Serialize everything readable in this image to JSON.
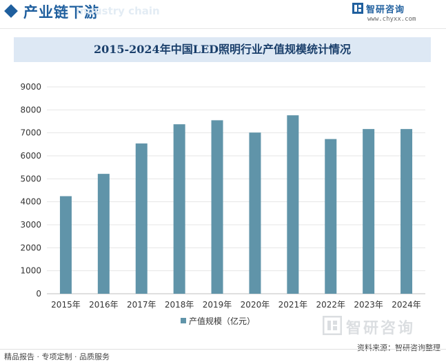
{
  "header": {
    "section_title": "产业链下游",
    "section_title_en": "Industry chain",
    "brand_name": "智研咨询",
    "brand_url": "www.chyxx.com",
    "accent_color": "#1f5f9e"
  },
  "chart_data": {
    "type": "bar",
    "title": "2015-2024年中国LED照明行业产值规模统计情况",
    "categories": [
      "2015年",
      "2016年",
      "2017年",
      "2018年",
      "2019年",
      "2020年",
      "2021年",
      "2022年",
      "2023年",
      "2024年"
    ],
    "series": [
      {
        "name": "产值规模（亿元）",
        "values": [
          4245,
          5216,
          6538,
          7374,
          7548,
          7013,
          7764,
          6731,
          7166,
          7166
        ],
        "color": "#6094a9"
      }
    ],
    "ylim": [
      0,
      9000
    ],
    "yticks": [
      0,
      1000,
      2000,
      3000,
      4000,
      5000,
      6000,
      7000,
      8000,
      9000
    ],
    "grid": true,
    "legend_position": "bottom-center"
  },
  "footer": {
    "left_text": "精品报告 · 专项定制 · 品质服务",
    "source_text": "资料来源：智研咨询整理",
    "watermark_text": "智研咨询"
  }
}
